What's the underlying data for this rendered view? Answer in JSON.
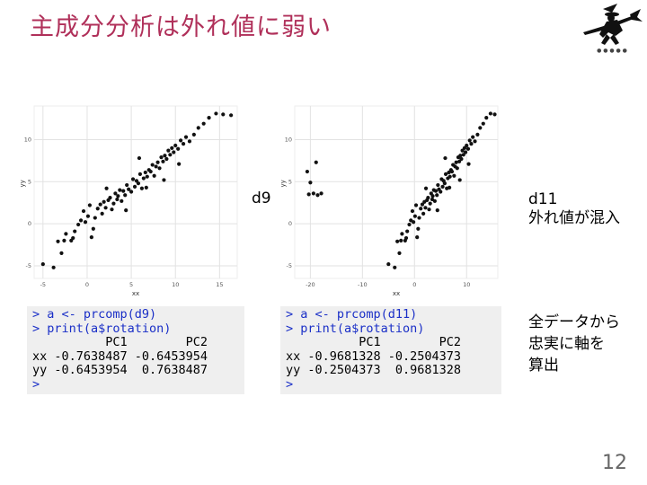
{
  "slide": {
    "title": "主成分分析は外れ値に弱い",
    "page_number": "12",
    "title_color": "#b0305a"
  },
  "labels": {
    "d9": "d9",
    "d11_line1": "d11",
    "d11_line2": "外れ値が混入",
    "note_line1": "全データから",
    "note_line2": "忠実に軸を",
    "note_line3": "算出"
  },
  "console_d9": {
    "lines": [
      "> a <- prcomp(d9)",
      "> print(a$rotation)",
      "          PC1        PC2",
      "xx -0.7638487 -0.6453954",
      "yy -0.6453954  0.7638487",
      ">"
    ]
  },
  "console_d11": {
    "lines": [
      "> a <- prcomp(d11)",
      "> print(a$rotation)",
      "          PC1        PC2",
      "xx -0.9681328 -0.2504373",
      "yy -0.2504373  0.9681328",
      ">"
    ]
  },
  "chart_data": [
    {
      "type": "scatter",
      "dataset": "d9",
      "xlabel": "xx",
      "ylabel": "yy",
      "xlim": [
        -6,
        17
      ],
      "ylim": [
        -6.5,
        14
      ],
      "xticks": [
        -5,
        0,
        5,
        10,
        15
      ],
      "yticks": [
        -5,
        0,
        5,
        10
      ],
      "grid": true,
      "points": [
        [
          -5.0,
          -4.8
        ],
        [
          -3.8,
          -5.2
        ],
        [
          -3.3,
          -2.1
        ],
        [
          -2.6,
          -2.0
        ],
        [
          -2.4,
          -1.2
        ],
        [
          -1.8,
          -2.0
        ],
        [
          -1.6,
          -1.7
        ],
        [
          -1.4,
          -0.9
        ],
        [
          -1.0,
          -0.1
        ],
        [
          -0.7,
          0.4
        ],
        [
          -0.4,
          1.5
        ],
        [
          -0.2,
          0.2
        ],
        [
          0.1,
          0.9
        ],
        [
          0.3,
          2.2
        ],
        [
          0.7,
          -0.6
        ],
        [
          0.9,
          0.7
        ],
        [
          1.2,
          1.8
        ],
        [
          1.5,
          2.3
        ],
        [
          1.7,
          1.2
        ],
        [
          1.9,
          2.6
        ],
        [
          2.1,
          1.9
        ],
        [
          2.4,
          2.8
        ],
        [
          2.6,
          3.1
        ],
        [
          2.8,
          1.7
        ],
        [
          3.0,
          2.4
        ],
        [
          3.2,
          3.6
        ],
        [
          3.4,
          2.9
        ],
        [
          3.5,
          3.3
        ],
        [
          3.7,
          4.0
        ],
        [
          3.9,
          2.7
        ],
        [
          4.1,
          3.9
        ],
        [
          4.3,
          3.4
        ],
        [
          4.5,
          4.6
        ],
        [
          4.7,
          4.1
        ],
        [
          5.0,
          3.8
        ],
        [
          5.2,
          5.3
        ],
        [
          5.4,
          4.4
        ],
        [
          5.6,
          5.1
        ],
        [
          5.8,
          4.8
        ],
        [
          6.0,
          5.9
        ],
        [
          6.2,
          4.2
        ],
        [
          6.4,
          5.4
        ],
        [
          6.6,
          6.1
        ],
        [
          6.8,
          5.6
        ],
        [
          7.0,
          6.4
        ],
        [
          7.2,
          6.2
        ],
        [
          7.4,
          7.0
        ],
        [
          7.6,
          5.7
        ],
        [
          7.8,
          6.8
        ],
        [
          8.0,
          7.3
        ],
        [
          8.2,
          6.6
        ],
        [
          8.4,
          7.9
        ],
        [
          8.6,
          7.4
        ],
        [
          8.8,
          8.1
        ],
        [
          9.0,
          7.7
        ],
        [
          9.2,
          8.7
        ],
        [
          9.4,
          8.2
        ],
        [
          9.6,
          9.0
        ],
        [
          9.8,
          8.5
        ],
        [
          10.0,
          9.3
        ],
        [
          10.3,
          8.9
        ],
        [
          10.6,
          9.9
        ],
        [
          10.9,
          9.5
        ],
        [
          11.2,
          10.3
        ],
        [
          11.6,
          9.8
        ],
        [
          12.1,
          10.6
        ],
        [
          12.6,
          11.4
        ],
        [
          13.2,
          11.9
        ],
        [
          13.8,
          12.6
        ],
        [
          14.6,
          13.1
        ],
        [
          15.4,
          13.0
        ],
        [
          16.3,
          12.9
        ],
        [
          4.4,
          1.6
        ],
        [
          6.7,
          4.3
        ],
        [
          2.2,
          4.2
        ],
        [
          0.5,
          -1.6
        ],
        [
          8.7,
          5.2
        ],
        [
          10.4,
          7.1
        ],
        [
          -2.9,
          -3.5
        ],
        [
          5.9,
          7.8
        ]
      ]
    },
    {
      "type": "scatter",
      "dataset": "d11",
      "xlabel": "xx",
      "ylabel": "yy",
      "xlim": [
        -23,
        16
      ],
      "ylim": [
        -6.5,
        14
      ],
      "xticks": [
        -20,
        -10,
        0,
        10
      ],
      "yticks": [
        -5,
        0,
        5,
        10
      ],
      "grid": true,
      "points": [
        [
          -20.6,
          6.2
        ],
        [
          -20.0,
          4.9
        ],
        [
          -19.4,
          3.6
        ],
        [
          -18.6,
          3.4
        ],
        [
          -18.9,
          7.3
        ],
        [
          -20.3,
          3.5
        ],
        [
          -17.9,
          3.6
        ],
        [
          -5.0,
          -4.8
        ],
        [
          -3.8,
          -5.2
        ],
        [
          -3.3,
          -2.1
        ],
        [
          -2.6,
          -2.0
        ],
        [
          -2.4,
          -1.2
        ],
        [
          -1.8,
          -2.0
        ],
        [
          -1.6,
          -1.7
        ],
        [
          -1.4,
          -0.9
        ],
        [
          -1.0,
          -0.1
        ],
        [
          -0.7,
          0.4
        ],
        [
          -0.4,
          1.5
        ],
        [
          -0.2,
          0.2
        ],
        [
          0.1,
          0.9
        ],
        [
          0.3,
          2.2
        ],
        [
          0.7,
          -0.6
        ],
        [
          0.9,
          0.7
        ],
        [
          1.2,
          1.8
        ],
        [
          1.5,
          2.3
        ],
        [
          1.7,
          1.2
        ],
        [
          1.9,
          2.6
        ],
        [
          2.1,
          1.9
        ],
        [
          2.4,
          2.8
        ],
        [
          2.6,
          3.1
        ],
        [
          2.8,
          1.7
        ],
        [
          3.0,
          2.4
        ],
        [
          3.2,
          3.6
        ],
        [
          3.4,
          2.9
        ],
        [
          3.5,
          3.3
        ],
        [
          3.7,
          4.0
        ],
        [
          3.9,
          2.7
        ],
        [
          4.1,
          3.9
        ],
        [
          4.3,
          3.4
        ],
        [
          4.5,
          4.6
        ],
        [
          4.7,
          4.1
        ],
        [
          5.0,
          3.8
        ],
        [
          5.2,
          5.3
        ],
        [
          5.4,
          4.4
        ],
        [
          5.6,
          5.1
        ],
        [
          5.8,
          4.8
        ],
        [
          6.0,
          5.9
        ],
        [
          6.2,
          4.2
        ],
        [
          6.4,
          5.4
        ],
        [
          6.6,
          6.1
        ],
        [
          6.8,
          5.6
        ],
        [
          7.0,
          6.4
        ],
        [
          7.2,
          6.2
        ],
        [
          7.4,
          7.0
        ],
        [
          7.6,
          5.7
        ],
        [
          7.8,
          6.8
        ],
        [
          8.0,
          7.3
        ],
        [
          8.2,
          6.6
        ],
        [
          8.4,
          7.9
        ],
        [
          8.6,
          7.4
        ],
        [
          8.8,
          8.1
        ],
        [
          9.0,
          7.7
        ],
        [
          9.2,
          8.7
        ],
        [
          9.4,
          8.2
        ],
        [
          9.6,
          9.0
        ],
        [
          9.8,
          8.5
        ],
        [
          10.0,
          9.3
        ],
        [
          10.3,
          8.9
        ],
        [
          10.6,
          9.9
        ],
        [
          10.9,
          9.5
        ],
        [
          11.2,
          10.3
        ],
        [
          11.6,
          9.8
        ],
        [
          12.1,
          10.6
        ],
        [
          12.6,
          11.4
        ],
        [
          13.2,
          11.9
        ],
        [
          13.8,
          12.6
        ],
        [
          14.6,
          13.1
        ],
        [
          15.4,
          13.0
        ],
        [
          4.4,
          1.6
        ],
        [
          6.7,
          4.3
        ],
        [
          2.2,
          4.2
        ],
        [
          0.5,
          -1.6
        ],
        [
          8.7,
          5.2
        ],
        [
          10.4,
          7.1
        ],
        [
          -2.9,
          -3.5
        ],
        [
          5.9,
          7.8
        ]
      ]
    }
  ]
}
